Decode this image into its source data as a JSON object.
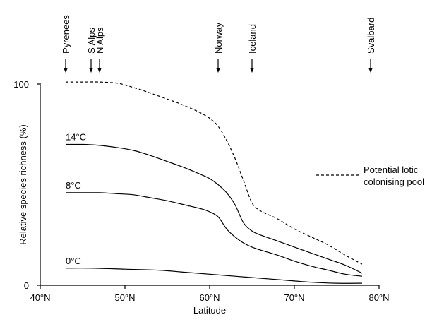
{
  "chart_data": {
    "type": "line",
    "xlabel": "Latitude",
    "ylabel": "Relative species richness (%)",
    "xlim": [
      40,
      80
    ],
    "ylim": [
      0,
      100
    ],
    "x_ticks": [
      {
        "value": 40,
        "label": "40°N"
      },
      {
        "value": 50,
        "label": "50°N"
      },
      {
        "value": 60,
        "label": "60°N"
      },
      {
        "value": 70,
        "label": "70°N"
      },
      {
        "value": 80,
        "label": "80°N"
      }
    ],
    "y_ticks": [
      {
        "value": 0,
        "label": "0"
      },
      {
        "value": 100,
        "label": "100"
      }
    ],
    "grid": false,
    "sites": [
      {
        "name": "Pyrenees",
        "x": 43
      },
      {
        "name": "S Alps",
        "x": 46
      },
      {
        "name": "N Alps",
        "x": 47
      },
      {
        "name": "Norway",
        "x": 61
      },
      {
        "name": "Iceland",
        "x": 65
      },
      {
        "name": "Svalbard",
        "x": 79
      }
    ],
    "series": [
      {
        "name": "Potential lotic colonising pool",
        "style": "dashed",
        "x": [
          43,
          45,
          47,
          49,
          50,
          52,
          54,
          56,
          58,
          59,
          60,
          61,
          62,
          63,
          64,
          65,
          66,
          68,
          70,
          72,
          74,
          76,
          78
        ],
        "y": [
          101,
          101,
          101,
          100.5,
          99.5,
          97,
          94,
          91,
          87.5,
          85.5,
          83,
          79,
          72,
          63,
          52,
          41,
          37,
          33,
          28,
          24,
          20,
          15,
          10.5
        ]
      },
      {
        "name": "14°C",
        "style": "solid",
        "x": [
          43,
          45,
          47,
          49,
          51,
          53,
          55,
          57,
          59,
          60,
          61,
          62,
          63,
          64,
          65,
          66,
          68,
          70,
          72,
          74,
          76,
          78
        ],
        "y": [
          70,
          70,
          69.5,
          68.5,
          67,
          64.5,
          61.5,
          58.5,
          55,
          53,
          50,
          46,
          40,
          31,
          27,
          25,
          22,
          19,
          16,
          13,
          10,
          6
        ]
      },
      {
        "name": "8°C",
        "style": "solid",
        "x": [
          43,
          45,
          47,
          49,
          51,
          53,
          55,
          57,
          59,
          60,
          61,
          62,
          63,
          64,
          65,
          66,
          68,
          70,
          72,
          74,
          76,
          78
        ],
        "y": [
          46,
          46,
          46,
          45.5,
          45,
          43.5,
          42,
          40,
          38,
          36.5,
          34,
          28,
          24,
          21,
          19,
          17.5,
          15,
          12,
          9.5,
          7.5,
          5.5,
          4.5
        ]
      },
      {
        "name": "0°C",
        "style": "solid",
        "x": [
          43,
          46,
          50,
          54,
          57,
          60,
          63,
          66,
          69,
          72,
          75,
          78
        ],
        "y": [
          8.5,
          8.5,
          8,
          7.5,
          6.5,
          5.5,
          4.5,
          3.5,
          2.5,
          1.5,
          1,
          1
        ]
      }
    ],
    "curve_labels": [
      {
        "text": "14°C",
        "x": 43,
        "y": 70
      },
      {
        "text": "8°C",
        "x": 43,
        "y": 46
      },
      {
        "text": "0°C",
        "x": 43,
        "y": 8.5
      }
    ],
    "legend": {
      "position": "right",
      "lines": [
        "Potential lotic",
        "colonising pool"
      ]
    }
  }
}
